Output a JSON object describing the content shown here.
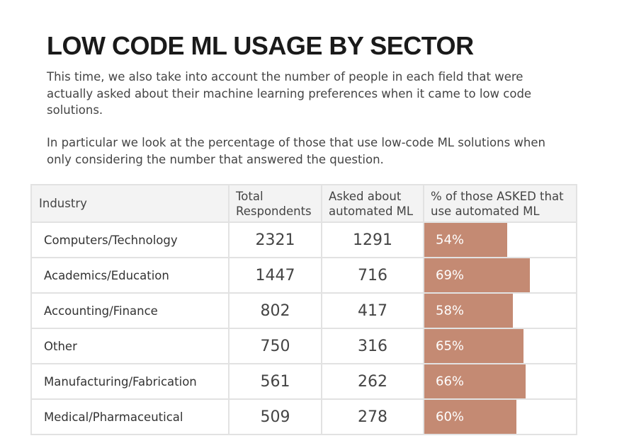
{
  "title": "LOW CODE ML USAGE BY SECTOR",
  "description": [
    "This time, we also take into account the number of people in each field that were actually asked about their machine learning preferences when it came to low code solutions.",
    "In particular we look at the percentage of those that use low-code ML solutions when only considering the number that answered the question."
  ],
  "colors": {
    "bar": "#c48a73",
    "bar_label": "#ffffff",
    "header_bg": "#f3f3f3",
    "border": "#e2e2e2"
  },
  "chart_data": {
    "type": "table",
    "columns": [
      "Industry",
      "Total Respondents",
      "Asked about automated ML",
      "% of those ASKED that use automated ML"
    ],
    "rows": [
      {
        "industry": "Computers/Technology",
        "total": 2321,
        "asked": 1291,
        "pct": 54,
        "pct_label": "54%"
      },
      {
        "industry": "Academics/Education",
        "total": 1447,
        "asked": 716,
        "pct": 69,
        "pct_label": "69%"
      },
      {
        "industry": "Accounting/Finance",
        "total": 802,
        "asked": 417,
        "pct": 58,
        "pct_label": "58%"
      },
      {
        "industry": "Other",
        "total": 750,
        "asked": 316,
        "pct": 65,
        "pct_label": "65%"
      },
      {
        "industry": "Manufacturing/Fabrication",
        "total": 561,
        "asked": 262,
        "pct": 66,
        "pct_label": "66%"
      },
      {
        "industry": "Medical/Pharmaceutical",
        "total": 509,
        "asked": 278,
        "pct": 60,
        "pct_label": "60%"
      }
    ],
    "bar_scale_max": 100
  }
}
